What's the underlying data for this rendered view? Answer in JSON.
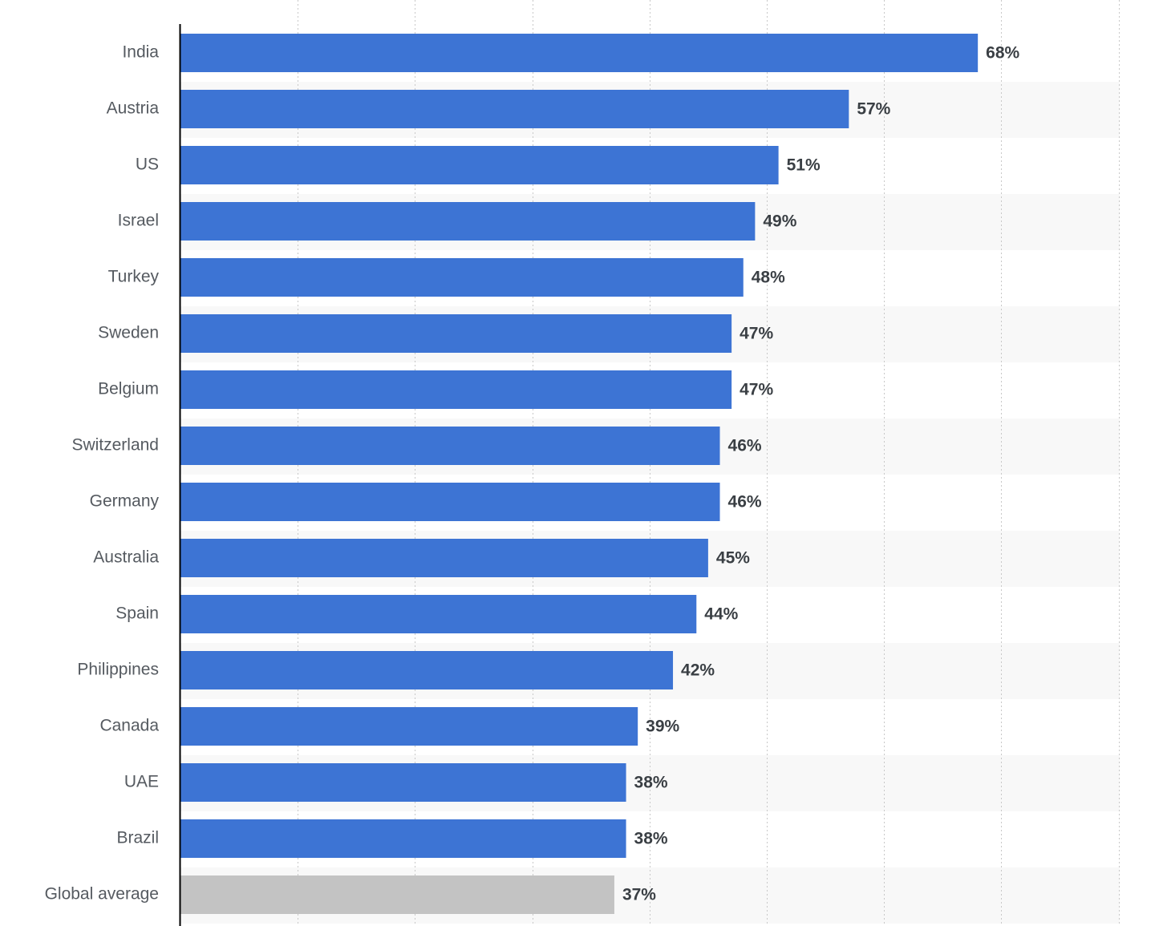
{
  "chart_data": {
    "type": "bar",
    "orientation": "horizontal",
    "categories": [
      "India",
      "Austria",
      "US",
      "Israel",
      "Turkey",
      "Sweden",
      "Belgium",
      "Switzerland",
      "Germany",
      "Australia",
      "Spain",
      "Philippines",
      "Canada",
      "UAE",
      "Brazil",
      "Global average"
    ],
    "values": [
      68,
      57,
      51,
      49,
      48,
      47,
      47,
      46,
      46,
      45,
      44,
      42,
      39,
      38,
      38,
      37
    ],
    "value_labels": [
      "68%",
      "57%",
      "51%",
      "49%",
      "48%",
      "47%",
      "47%",
      "46%",
      "46%",
      "45%",
      "44%",
      "42%",
      "39%",
      "38%",
      "38%",
      "37%"
    ],
    "unit": "%",
    "xlim": [
      0,
      80
    ],
    "x_gridlines": [
      10,
      20,
      30,
      40,
      50,
      60,
      70,
      80
    ],
    "grid": true,
    "grid_style": "dotted",
    "alternating_row_background": true,
    "colors": {
      "bar": "#3d74d4",
      "highlight_bar": "#c3c3c3",
      "row_stripe": "#f8f8f8",
      "axis": "#000000",
      "grid": "#c8c8c8"
    },
    "highlighted_category": "Global average",
    "title": "",
    "xlabel": "",
    "ylabel": ""
  }
}
